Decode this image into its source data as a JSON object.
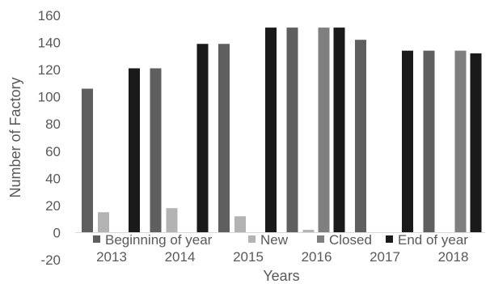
{
  "chart_data": {
    "type": "bar",
    "categories": [
      "2013",
      "2014",
      "2015",
      "2016",
      "2017",
      "2018"
    ],
    "series": [
      {
        "name": "Beginning of year",
        "color": "#5f5f5f",
        "values": [
          106,
          121,
          139,
          151,
          142,
          134
        ]
      },
      {
        "name": "New",
        "color": "#b3b3b3",
        "values": [
          15,
          18,
          12,
          2,
          0,
          0
        ]
      },
      {
        "name": "Closed",
        "color": "#7f7f7f",
        "values": [
          0,
          0,
          0,
          151,
          0,
          134
        ]
      },
      {
        "name": "End of year",
        "color": "#1a1a1a",
        "values": [
          121,
          139,
          151,
          151,
          134,
          132
        ]
      }
    ],
    "xlabel": "Years",
    "ylabel": "Number of Factory",
    "ylim": [
      -20,
      160
    ],
    "yticks": [
      -20,
      0,
      20,
      40,
      60,
      80,
      100,
      120,
      140,
      160
    ],
    "grid": false,
    "legend_position": "bottom"
  }
}
